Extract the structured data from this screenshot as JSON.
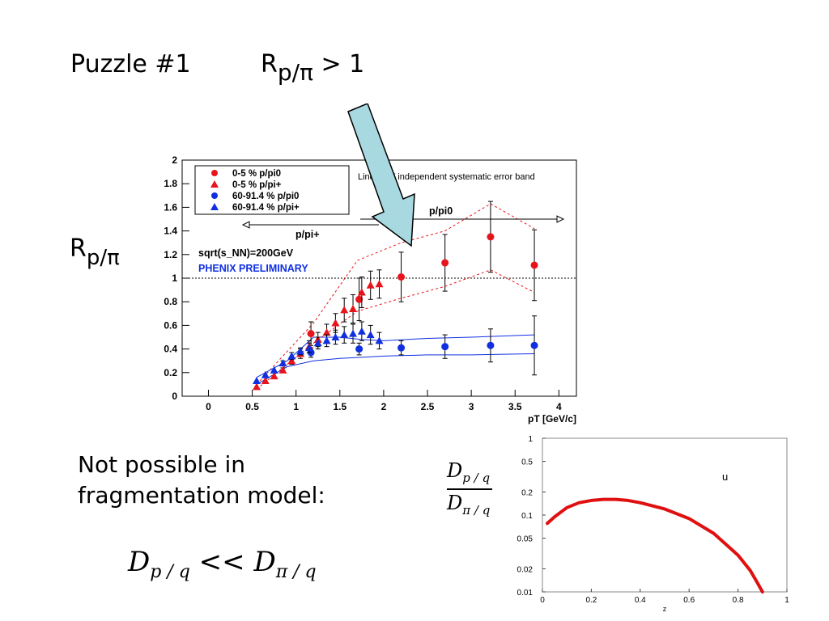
{
  "slide": {
    "puzzle_label": "Puzzle #1",
    "ratio_header": {
      "base": "R",
      "sub": "p/π",
      "rest": " > 1"
    },
    "ratio_side": {
      "base": "R",
      "sub": "p/π"
    },
    "not_possible_line1": "Not possible in",
    "not_possible_line2": "fragmentation model:",
    "ineq": {
      "left_base": "D",
      "left_sub": "p / q",
      "op": " << ",
      "right_base": "D",
      "right_sub": "π / q"
    },
    "frac": {
      "num_base": "D",
      "num_sub": "p / q",
      "den_base": "D",
      "den_sub": "π / q"
    }
  },
  "chart_data": [
    {
      "type": "scatter",
      "xlabel": "pT [GeV/c]",
      "ylabel": "",
      "xlim": [
        -0.3,
        4.2
      ],
      "ylim": [
        0,
        2
      ],
      "xticks": [
        "0",
        "0.5",
        "1",
        "1.5",
        "2",
        "2.5",
        "3",
        "3.5",
        "4"
      ],
      "yticks": [
        "0",
        "0.2",
        "0.4",
        "0.6",
        "0.8",
        "1",
        "1.2",
        "1.4",
        "1.6",
        "1.8",
        "2"
      ],
      "legend_placement": "top-left",
      "reference_line_y": 1,
      "annotations": {
        "syst_text": "Linear pT independent systematic error band",
        "p_pi0": "p/pi0",
        "p_piplus": "p/pi+",
        "energy": "sqrt(s_NN)=200GeV",
        "preliminary": "PHENIX PRELIMINARY"
      },
      "colors": {
        "central": "#e8141b",
        "peripheral": "#1030e0"
      },
      "series": [
        {
          "name": "0-5 % p/pi0",
          "marker": "circle",
          "color": "#e8141b",
          "x": [
            1.17,
            1.72,
            2.2,
            2.7,
            3.22,
            3.72
          ],
          "y": [
            0.53,
            0.82,
            1.01,
            1.13,
            1.35,
            1.11
          ],
          "err": [
            0.1,
            0.18,
            0.21,
            0.24,
            0.3,
            0.3
          ]
        },
        {
          "name": "0-5 % p/pi+",
          "marker": "triangle",
          "color": "#e8141b",
          "x": [
            0.55,
            0.65,
            0.75,
            0.85,
            0.95,
            1.05,
            1.15,
            1.25,
            1.35,
            1.45,
            1.55,
            1.65,
            1.75,
            1.85,
            1.95
          ],
          "y": [
            0.08,
            0.13,
            0.17,
            0.22,
            0.3,
            0.36,
            0.42,
            0.48,
            0.54,
            0.62,
            0.73,
            0.74,
            0.88,
            0.94,
            0.95
          ],
          "err": [
            0,
            0,
            0,
            0.02,
            0.03,
            0.04,
            0.05,
            0.06,
            0.07,
            0.08,
            0.1,
            0.12,
            0.13,
            0.12,
            0.12
          ]
        },
        {
          "name": "60-91.4 % p/pi0",
          "marker": "circle",
          "color": "#1030e0",
          "x": [
            1.17,
            1.72,
            2.2,
            2.7,
            3.22,
            3.72
          ],
          "y": [
            0.37,
            0.4,
            0.41,
            0.42,
            0.43,
            0.43
          ],
          "err": [
            0.04,
            0.05,
            0.06,
            0.1,
            0.14,
            0.25
          ]
        },
        {
          "name": "60-91.4 % p/pi+",
          "marker": "triangle",
          "color": "#1030e0",
          "x": [
            0.55,
            0.65,
            0.75,
            0.85,
            0.95,
            1.05,
            1.15,
            1.25,
            1.35,
            1.45,
            1.55,
            1.65,
            1.75,
            1.85,
            1.95
          ],
          "y": [
            0.13,
            0.18,
            0.22,
            0.28,
            0.34,
            0.38,
            0.41,
            0.45,
            0.47,
            0.5,
            0.52,
            0.53,
            0.55,
            0.52,
            0.47
          ],
          "err": [
            0,
            0,
            0,
            0.02,
            0.03,
            0.03,
            0.04,
            0.05,
            0.05,
            0.06,
            0.07,
            0.08,
            0.08,
            0.08,
            0.07
          ]
        }
      ],
      "bands": [
        {
          "color": "#e8141b",
          "style": "dashed",
          "upper": {
            "x": [
              0.55,
              1.2,
              1.7,
              2.2,
              2.7,
              3.22,
              3.72
            ],
            "y": [
              0.1,
              0.62,
              1.15,
              1.3,
              1.4,
              1.63,
              1.42
            ]
          },
          "lower": {
            "x": [
              0.55,
              1.2,
              1.7,
              2.2,
              2.7,
              3.22,
              3.72
            ],
            "y": [
              0.06,
              0.45,
              0.72,
              0.83,
              0.93,
              1.07,
              0.88
            ]
          }
        },
        {
          "color": "#1030e0",
          "style": "solid",
          "upper": {
            "x": [
              0.55,
              0.9,
              1.2,
              1.5,
              1.75,
              2.0,
              2.5,
              3.0,
              3.72
            ],
            "y": [
              0.16,
              0.3,
              0.5,
              0.5,
              0.48,
              0.47,
              0.49,
              0.5,
              0.52
            ]
          },
          "lower": {
            "x": [
              0.55,
              0.9,
              1.2,
              1.5,
              1.75,
              2.0,
              2.5,
              3.0,
              3.72
            ],
            "y": [
              0.1,
              0.25,
              0.3,
              0.32,
              0.33,
              0.34,
              0.35,
              0.35,
              0.36
            ]
          }
        }
      ]
    },
    {
      "type": "line",
      "xlabel": "z",
      "ylabel": "",
      "xlim": [
        0,
        1
      ],
      "ylim": [
        0.01,
        1
      ],
      "yscale": "log",
      "xticks": [
        "0",
        "0.2",
        "0.4",
        "0.6",
        "0.8",
        "1"
      ],
      "yticks": [
        "0.01",
        "0.02",
        "0.05",
        "0.1",
        "0.2",
        "0.5",
        "1"
      ],
      "label": "u",
      "series": [
        {
          "color": "#e01010",
          "x": [
            0.02,
            0.05,
            0.1,
            0.15,
            0.2,
            0.25,
            0.3,
            0.35,
            0.4,
            0.5,
            0.6,
            0.7,
            0.8,
            0.85,
            0.88,
            0.9
          ],
          "y": [
            0.078,
            0.095,
            0.125,
            0.145,
            0.155,
            0.16,
            0.16,
            0.155,
            0.145,
            0.12,
            0.09,
            0.058,
            0.03,
            0.019,
            0.013,
            0.01
          ]
        }
      ]
    }
  ]
}
